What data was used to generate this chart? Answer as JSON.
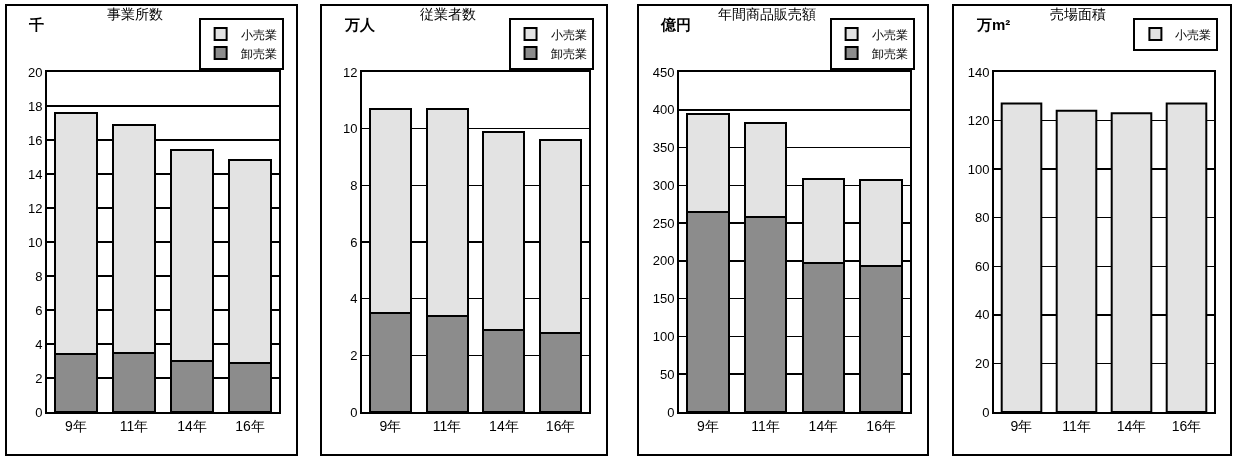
{
  "chart_data": [
    {
      "type": "bar",
      "title": "事業所数",
      "ylabel": "千",
      "categories": [
        "9年",
        "11年",
        "14年",
        "16年"
      ],
      "stacked": true,
      "series": [
        {
          "name": "卸売業",
          "color": "#8c8c8c",
          "values": [
            3.4,
            3.5,
            3.0,
            2.9
          ]
        },
        {
          "name": "小売業",
          "color": "#e3e3e3",
          "values": [
            14.2,
            13.4,
            12.4,
            11.9
          ]
        }
      ],
      "ylim": [
        0,
        20
      ],
      "yticks": [
        0,
        2,
        4,
        6,
        8,
        10,
        12,
        14,
        16,
        18,
        20
      ],
      "grid": "y",
      "legend": "top right"
    },
    {
      "type": "bar",
      "title": "従業者数",
      "ylabel": "万人",
      "categories": [
        "9年",
        "11年",
        "14年",
        "16年"
      ],
      "stacked": true,
      "series": [
        {
          "name": "卸売業",
          "color": "#8c8c8c",
          "values": [
            3.5,
            3.4,
            2.9,
            2.8
          ]
        },
        {
          "name": "小売業",
          "color": "#e3e3e3",
          "values": [
            7.2,
            7.3,
            7.0,
            6.8
          ]
        }
      ],
      "ylim": [
        0,
        12
      ],
      "yticks": [
        0,
        2,
        4,
        6,
        8,
        10,
        12
      ],
      "grid": "y",
      "legend": "top right"
    },
    {
      "type": "bar",
      "title": "年間商品販売額",
      "ylabel": "億円",
      "categories": [
        "9年",
        "11年",
        "14年",
        "16年"
      ],
      "stacked": true,
      "series": [
        {
          "name": "卸売業",
          "color": "#8c8c8c",
          "values": [
            265,
            258,
            197,
            193
          ]
        },
        {
          "name": "小売業",
          "color": "#e3e3e3",
          "values": [
            130,
            125,
            112,
            114
          ]
        }
      ],
      "ylim": [
        0,
        450
      ],
      "yticks": [
        0,
        50,
        100,
        150,
        200,
        250,
        300,
        350,
        400,
        450
      ],
      "grid": "y",
      "legend": "top right"
    },
    {
      "type": "bar",
      "title": "売場面積",
      "ylabel": "万m²",
      "categories": [
        "9年",
        "11年",
        "14年",
        "16年"
      ],
      "series": [
        {
          "name": "小売業",
          "color": "#e3e3e3",
          "values": [
            127,
            124,
            123,
            127
          ]
        }
      ],
      "ylim": [
        0,
        140
      ],
      "yticks": [
        0,
        20,
        40,
        60,
        80,
        100,
        120,
        140
      ],
      "grid": "y",
      "legend": "top right"
    }
  ]
}
